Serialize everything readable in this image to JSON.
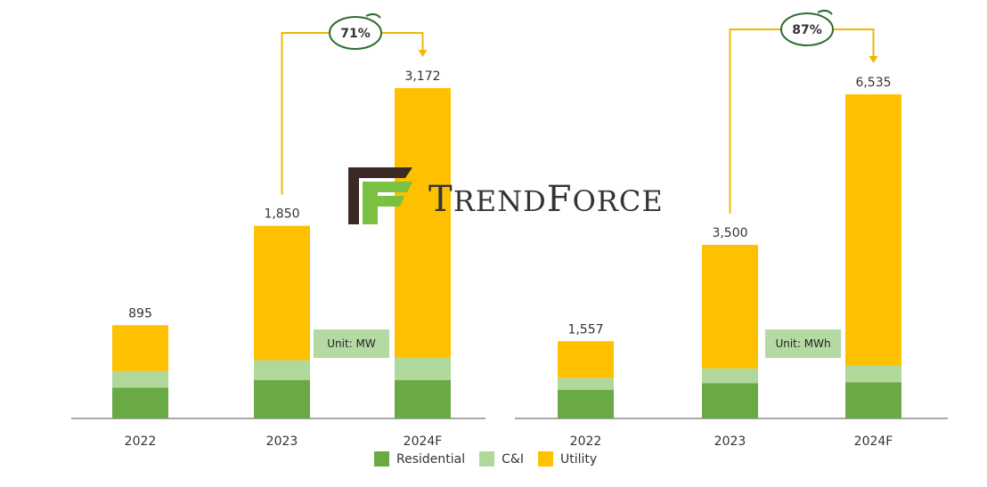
{
  "colors": {
    "residential": "#6aaa45",
    "ci": "#b0d89b",
    "utility": "#ffc000",
    "arrow": "#f0b800",
    "badge_ring": "#2f6b2f",
    "unit_box": "#b5d9a3",
    "axis": "#8a8a8a"
  },
  "watermark": {
    "brand": "TrendForce"
  },
  "legend": [
    {
      "key": "residential",
      "label": "Residential"
    },
    {
      "key": "ci",
      "label": "C&I"
    },
    {
      "key": "utility",
      "label": "Utility"
    }
  ],
  "chart_data": [
    {
      "type": "bar",
      "stacked": true,
      "unit_label": "Unit: MW",
      "categories": [
        "2022",
        "2023",
        "2024F"
      ],
      "totals": [
        "895",
        "1,850",
        "3,172"
      ],
      "total_values": [
        895,
        1850,
        3172
      ],
      "series": [
        {
          "name": "Residential",
          "values": [
            295,
            370,
            370
          ]
        },
        {
          "name": "C&I",
          "values": [
            160,
            190,
            210
          ]
        },
        {
          "name": "Utility",
          "values": [
            440,
            1290,
            2592
          ]
        }
      ],
      "growth": {
        "from": "2023",
        "to": "2024F",
        "label": "71%"
      }
    },
    {
      "type": "bar",
      "stacked": true,
      "unit_label": "Unit: MWh",
      "categories": [
        "2022",
        "2023",
        "2024F"
      ],
      "totals": [
        "1,557",
        "3,500",
        "6,535"
      ],
      "total_values": [
        1557,
        3500,
        6535
      ],
      "series": [
        {
          "name": "Residential",
          "values": [
            580,
            710,
            730
          ]
        },
        {
          "name": "C&I",
          "values": [
            240,
            300,
            330
          ]
        },
        {
          "name": "Utility",
          "values": [
            737,
            2490,
            5475
          ]
        }
      ],
      "growth": {
        "from": "2023",
        "to": "2024F",
        "label": "87%"
      }
    }
  ]
}
